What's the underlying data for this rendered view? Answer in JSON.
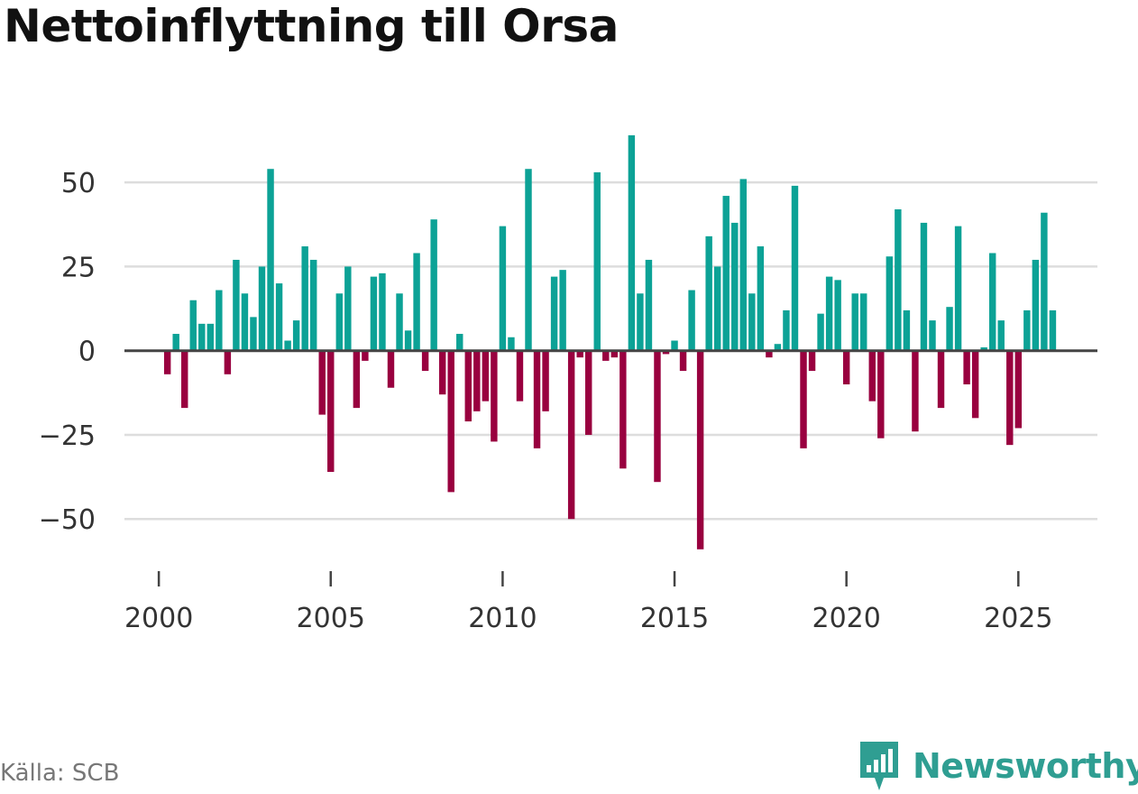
{
  "title": "Nettoinflyttning till Orsa",
  "source": "Källa: SCB",
  "brand": {
    "name": "Newsworthy",
    "icon": "newsworthy-logo-icon"
  },
  "colors": {
    "positive": "#0ca296",
    "negative": "#99003f",
    "grid": "#dddddd",
    "zero": "#444444",
    "brand": "#2f9e92"
  },
  "chart_data": {
    "type": "bar",
    "title": "Nettoinflyttning till Orsa",
    "xlabel": "",
    "ylabel": "",
    "ylim": [
      -62,
      68
    ],
    "xlim": [
      1999,
      2027.3
    ],
    "yticks": [
      50,
      25,
      0,
      -25,
      -50
    ],
    "ytick_labels": [
      "50",
      "25",
      "0",
      "−25",
      "−50"
    ],
    "xticks": [
      2000,
      2005,
      2010,
      2015,
      2020,
      2025
    ],
    "xtick_labels": [
      "2000",
      "2005",
      "2010",
      "2015",
      "2020",
      "2025"
    ],
    "start_year": 2000,
    "periods_per_year": 4,
    "values": [
      -7,
      5,
      -17,
      15,
      8,
      8,
      18,
      -7,
      27,
      17,
      10,
      25,
      54,
      20,
      3,
      9,
      31,
      27,
      -19,
      -36,
      17,
      25,
      -17,
      -3,
      22,
      23,
      -11,
      17,
      6,
      29,
      -6,
      39,
      -13,
      -42,
      5,
      -21,
      -18,
      -15,
      -27,
      37,
      4,
      -15,
      54,
      -29,
      -18,
      22,
      24,
      -50,
      -2,
      -25,
      53,
      -3,
      -2,
      -35,
      64,
      17,
      27,
      -39,
      -1,
      3,
      -6,
      18,
      -59,
      34,
      25,
      46,
      38,
      51,
      17,
      31,
      -2,
      2,
      12,
      49,
      -29,
      -6,
      11,
      22,
      21,
      -10,
      17,
      17,
      -15,
      -26,
      28,
      42,
      12,
      -24,
      38,
      9,
      -17,
      13,
      37,
      -10,
      -20,
      1,
      29,
      9,
      -28,
      -23,
      12,
      27,
      41,
      12
    ]
  }
}
